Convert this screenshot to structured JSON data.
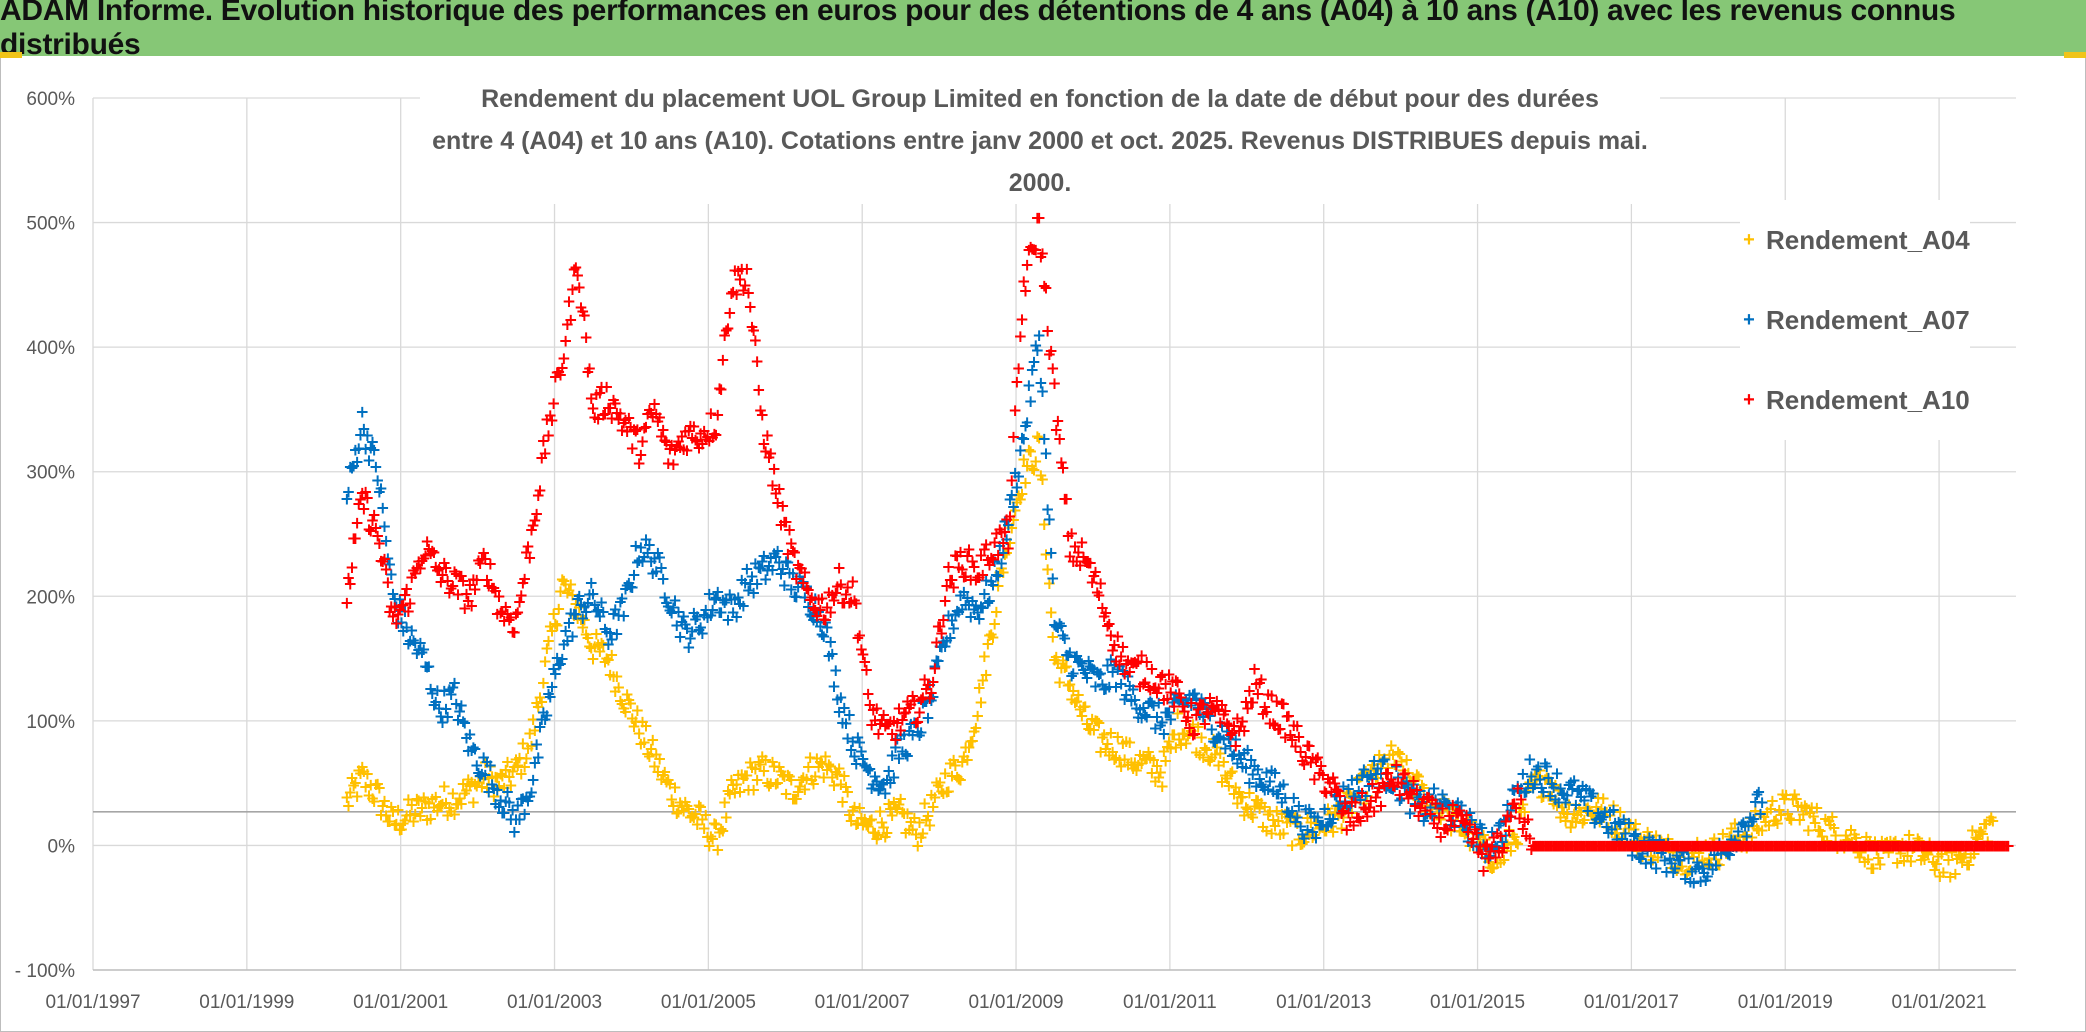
{
  "banner": {
    "title": "ADAM Informe. Evolution historique des performances en euros pour des détentions de 4 ans (A04) à 10 ans (A10) avec les revenus connus distribués"
  },
  "chart_data": {
    "type": "scatter",
    "title_line1": "Rendement du placement UOL Group Limited en fonction de la date de début pour des durées",
    "title_line2": "entre 4 (A04) et 10 ans (A10). Cotations entre janv 2000 et oct. 2025. Revenus DISTRIBUES depuis mai. 2000.",
    "x_tick_labels": [
      "01/01/1997",
      "01/01/1999",
      "01/01/2001",
      "01/01/2003",
      "01/01/2005",
      "01/01/2007",
      "01/01/2009",
      "01/01/2011",
      "01/01/2013",
      "01/01/2015",
      "01/01/2017",
      "01/01/2019",
      "01/01/2021"
    ],
    "x_range": [
      1997.0,
      2022.0
    ],
    "y_tick_labels": [
      "- 100%",
      "0%",
      "100%",
      "200%",
      "300%",
      "400%",
      "500%",
      "600%"
    ],
    "y_range": [
      -100,
      600
    ],
    "reference_line_y": 27,
    "marker": "+",
    "series": [
      {
        "name": "Rendement_A04",
        "color": "#ffc000",
        "x": [
          2000.3,
          2000.5,
          2000.7,
          2000.9,
          2001.1,
          2001.3,
          2001.5,
          2001.7,
          2001.9,
          2002.1,
          2002.3,
          2002.5,
          2002.7,
          2002.9,
          2003.1,
          2003.3,
          2003.5,
          2003.7,
          2003.9,
          2004.1,
          2004.3,
          2004.5,
          2004.7,
          2004.9,
          2005.1,
          2005.3,
          2005.5,
          2005.7,
          2005.9,
          2006.1,
          2006.3,
          2006.5,
          2006.7,
          2006.9,
          2007.1,
          2007.3,
          2007.5,
          2007.7,
          2007.9,
          2008.1,
          2008.3,
          2008.5,
          2008.7,
          2008.9,
          2009.1,
          2009.3,
          2009.5,
          2009.7,
          2009.9,
          2010.1,
          2010.3,
          2010.5,
          2010.7,
          2010.9,
          2011.1,
          2011.3,
          2011.5,
          2011.7,
          2011.9,
          2012.1,
          2012.3,
          2012.5,
          2012.7,
          2012.9,
          2013.1,
          2013.3,
          2013.5,
          2013.7,
          2013.9,
          2014.1,
          2014.3,
          2014.5,
          2014.7,
          2014.9,
          2015.1,
          2015.3,
          2015.5,
          2015.7,
          2015.9,
          2016.1,
          2016.3,
          2016.5,
          2016.7,
          2016.9,
          2017.1,
          2017.3,
          2017.5,
          2017.7,
          2017.9,
          2018.1,
          2018.3,
          2018.5,
          2018.7,
          2018.9,
          2019.1,
          2019.3,
          2019.5,
          2019.7,
          2019.9,
          2020.1,
          2020.3,
          2020.5,
          2020.7,
          2020.9,
          2021.1,
          2021.3,
          2021.5,
          2021.7
        ],
        "y": [
          35,
          55,
          40,
          18,
          25,
          30,
          35,
          38,
          45,
          55,
          50,
          60,
          85,
          150,
          210,
          190,
          160,
          150,
          120,
          95,
          70,
          45,
          30,
          20,
          5,
          40,
          55,
          60,
          55,
          45,
          60,
          65,
          55,
          20,
          15,
          20,
          25,
          10,
          30,
          55,
          65,
          110,
          180,
          250,
          300,
          320,
          150,
          130,
          100,
          85,
          80,
          70,
          65,
          60,
          95,
          90,
          80,
          60,
          40,
          30,
          20,
          15,
          10,
          15,
          20,
          30,
          45,
          60,
          70,
          55,
          40,
          30,
          20,
          10,
          -5,
          -10,
          10,
          45,
          55,
          30,
          25,
          30,
          25,
          15,
          5,
          0,
          -5,
          -10,
          -5,
          -5,
          5,
          10,
          20,
          30,
          30,
          25,
          15,
          10,
          5,
          -5,
          -10,
          0,
          -5,
          -10,
          -15,
          -10,
          5,
          20
        ]
      },
      {
        "name": "Rendement_A07",
        "color": "#0070c0",
        "x": [
          2000.3,
          2000.5,
          2000.7,
          2000.9,
          2001.1,
          2001.3,
          2001.5,
          2001.7,
          2001.9,
          2002.1,
          2002.3,
          2002.5,
          2002.7,
          2002.9,
          2003.1,
          2003.3,
          2003.5,
          2003.7,
          2003.9,
          2004.1,
          2004.3,
          2004.5,
          2004.7,
          2004.9,
          2005.1,
          2005.3,
          2005.5,
          2005.7,
          2005.9,
          2006.1,
          2006.3,
          2006.5,
          2006.7,
          2006.9,
          2007.1,
          2007.3,
          2007.5,
          2007.7,
          2007.9,
          2008.1,
          2008.3,
          2008.5,
          2008.7,
          2008.9,
          2009.1,
          2009.3,
          2009.5,
          2009.7,
          2009.9,
          2010.1,
          2010.3,
          2010.5,
          2010.7,
          2010.9,
          2011.1,
          2011.3,
          2011.5,
          2011.7,
          2011.9,
          2012.1,
          2012.3,
          2012.5,
          2012.7,
          2012.9,
          2013.1,
          2013.3,
          2013.5,
          2013.7,
          2013.9,
          2014.1,
          2014.3,
          2014.5,
          2014.7,
          2014.9,
          2015.1,
          2015.3,
          2015.5,
          2015.7,
          2015.9,
          2016.1,
          2016.3,
          2016.5,
          2016.7,
          2016.9,
          2017.1,
          2017.3,
          2017.5,
          2017.7,
          2017.9,
          2018.1,
          2018.3,
          2018.5,
          2018.7
        ],
        "y": [
          280,
          340,
          300,
          200,
          170,
          150,
          110,
          120,
          80,
          60,
          40,
          20,
          50,
          110,
          160,
          190,
          200,
          170,
          190,
          240,
          230,
          200,
          170,
          180,
          200,
          190,
          210,
          220,
          230,
          210,
          200,
          180,
          120,
          80,
          60,
          50,
          80,
          90,
          120,
          170,
          200,
          190,
          210,
          260,
          330,
          410,
          180,
          150,
          140,
          130,
          140,
          120,
          110,
          100,
          110,
          120,
          100,
          90,
          70,
          60,
          50,
          40,
          20,
          15,
          30,
          40,
          50,
          60,
          55,
          40,
          30,
          35,
          25,
          15,
          0,
          10,
          40,
          60,
          55,
          45,
          40,
          30,
          20,
          10,
          0,
          -5,
          -10,
          -15,
          -20,
          -10,
          5,
          20,
          35
        ]
      },
      {
        "name": "Rendement_A10",
        "color": "#ff0000",
        "x": [
          2000.3,
          2000.5,
          2000.7,
          2000.9,
          2001.1,
          2001.3,
          2001.5,
          2001.7,
          2001.9,
          2002.1,
          2002.3,
          2002.5,
          2002.7,
          2002.9,
          2003.1,
          2003.3,
          2003.5,
          2003.7,
          2003.9,
          2004.1,
          2004.3,
          2004.5,
          2004.7,
          2004.9,
          2005.1,
          2005.3,
          2005.5,
          2005.7,
          2005.9,
          2006.1,
          2006.3,
          2006.5,
          2006.7,
          2006.9,
          2007.1,
          2007.3,
          2007.5,
          2007.7,
          2007.9,
          2008.1,
          2008.3,
          2008.5,
          2008.7,
          2008.9,
          2009.1,
          2009.3,
          2009.5,
          2009.7,
          2009.9,
          2010.1,
          2010.3,
          2010.5,
          2010.7,
          2010.9,
          2011.1,
          2011.3,
          2011.5,
          2011.7,
          2011.9,
          2012.1,
          2012.3,
          2012.5,
          2012.7,
          2012.9,
          2013.1,
          2013.3,
          2013.5,
          2013.7,
          2013.9,
          2014.1,
          2014.3,
          2014.5,
          2014.7,
          2014.9,
          2015.1,
          2015.3,
          2015.5,
          2015.7,
          2015.9,
          2016.1,
          2016.3,
          2016.5,
          2016.7,
          2016.9,
          2017.1,
          2017.3,
          2017.5,
          2017.7,
          2017.9,
          2018.1,
          2018.3,
          2018.5,
          2018.7,
          2018.9,
          2019.1,
          2019.3,
          2019.5,
          2019.7,
          2019.9,
          2020.1,
          2020.3,
          2020.5,
          2020.7,
          2020.9,
          2021.1,
          2021.3,
          2021.5,
          2021.7,
          2021.9
        ],
        "y": [
          200,
          280,
          250,
          180,
          200,
          240,
          220,
          210,
          200,
          230,
          190,
          180,
          250,
          330,
          390,
          470,
          350,
          360,
          340,
          320,
          350,
          310,
          330,
          330,
          340,
          450,
          460,
          340,
          280,
          230,
          200,
          190,
          210,
          200,
          110,
          90,
          100,
          110,
          130,
          210,
          230,
          220,
          240,
          250,
          450,
          500,
          360,
          240,
          230,
          200,
          160,
          140,
          140,
          130,
          120,
          100,
          110,
          100,
          90,
          130,
          110,
          100,
          80,
          60,
          50,
          20,
          30,
          40,
          55,
          45,
          30,
          20,
          20,
          10,
          -10,
          0,
          40,
          0,
          0,
          0,
          0,
          0,
          0,
          0,
          0,
          0,
          0,
          0,
          0,
          0,
          0,
          0,
          0,
          0,
          0,
          0,
          0,
          0,
          0,
          0,
          0,
          0,
          0,
          0,
          0,
          0,
          0,
          0,
          0
        ]
      }
    ]
  }
}
